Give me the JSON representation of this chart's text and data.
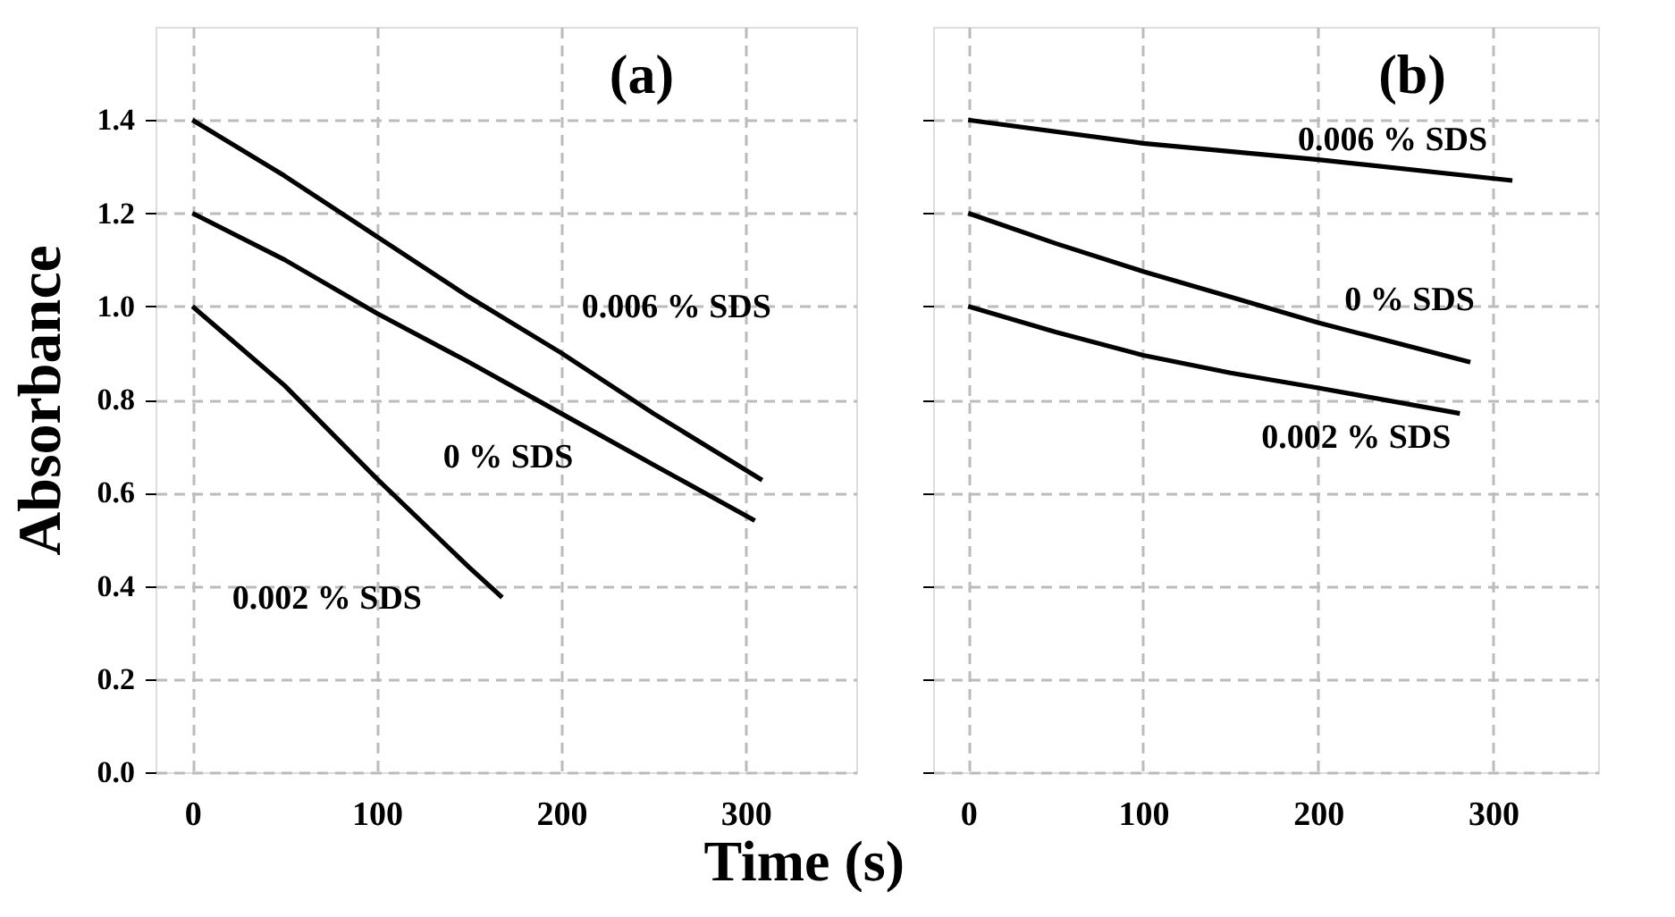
{
  "chart_data": [
    {
      "type": "line",
      "xlabel": "Time (s)",
      "ylabel": "Absorbance",
      "xlim": [
        -20,
        360
      ],
      "ylim": [
        0,
        1.6
      ],
      "xticks": [
        0,
        100,
        200,
        300
      ],
      "yticks": [
        {
          "value": 0,
          "label": "0.0"
        },
        0.2,
        0.4,
        0.6,
        0.8,
        {
          "value": 1,
          "label": "1.0"
        },
        1.2,
        1.4
      ],
      "grid": true,
      "line_style": "solid",
      "marker": "none",
      "series": [
        {
          "name": "0.006 % SDS",
          "color": "#000000",
          "x": [
            0,
            50,
            100,
            150,
            200,
            250,
            309
          ],
          "values": [
            1.4,
            1.28,
            1.15,
            1.02,
            0.9,
            0.77,
            0.627
          ]
        },
        {
          "name": "0 % SDS",
          "color": "#000000",
          "x": [
            0,
            50,
            100,
            150,
            200,
            250,
            305
          ],
          "values": [
            1.2,
            1.1,
            0.985,
            0.88,
            0.77,
            0.66,
            0.54
          ]
        },
        {
          "name": "0.002 % SDS",
          "color": "#000000",
          "x": [
            0,
            50,
            100,
            150,
            168
          ],
          "values": [
            1.0,
            0.83,
            0.63,
            0.44,
            0.375
          ]
        }
      ],
      "title": "(a)"
    },
    {
      "type": "line",
      "xlim": [
        -20,
        360
      ],
      "ylim": [
        0,
        1.6
      ],
      "xticks": [
        0,
        100,
        200,
        300
      ],
      "yticks": [
        {
          "value": 0,
          "label": null
        },
        {
          "value": 0.2,
          "label": null
        },
        {
          "value": 0.4,
          "label": null
        },
        {
          "value": 0.6,
          "label": null
        },
        {
          "value": 0.8,
          "label": null
        },
        {
          "value": 1,
          "label": null
        },
        {
          "value": 1.2,
          "label": null
        },
        {
          "value": 1.4,
          "label": null
        }
      ],
      "tick_labels": "x",
      "grid": true,
      "line_style": "solid",
      "marker": "none",
      "series": [
        {
          "name": "0.006 % SDS",
          "color": "#000000",
          "x": [
            0,
            100,
            200,
            311
          ],
          "values": [
            1.4,
            1.35,
            1.315,
            1.27
          ]
        },
        {
          "name": "0 % SDS",
          "color": "#000000",
          "x": [
            0,
            50,
            100,
            150,
            200,
            287
          ],
          "values": [
            1.2,
            1.135,
            1.075,
            1.02,
            0.965,
            0.88
          ]
        },
        {
          "name": "0.002 % SDS",
          "color": "#000000",
          "x": [
            0,
            50,
            100,
            150,
            200,
            281
          ],
          "values": [
            1.0,
            0.945,
            0.895,
            0.857,
            0.825,
            0.77
          ]
        }
      ],
      "title": "(b)"
    }
  ]
}
